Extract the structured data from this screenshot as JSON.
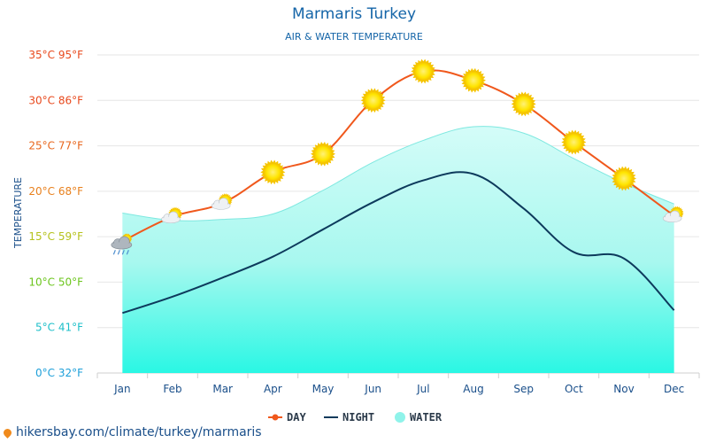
{
  "title": "Marmaris Turkey",
  "subtitle": "AIR & WATER TEMPERATURE",
  "watermark": "hikersbay.com/climate/turkey/marmaris",
  "colors": {
    "day": "#f0581c",
    "night": "#0d3a5c",
    "water_top": "#c8fbf6",
    "water_bottom": "#2af7e4",
    "water_edge": "#7ee8e0",
    "title": "#1565a8",
    "grid": "#e6e6e6"
  },
  "chart_data": {
    "type": "line",
    "ylabel": "TEMPERATURE",
    "ylim": [
      0,
      35
    ],
    "grid": true,
    "legend": "bottom-center",
    "categories": [
      "Jan",
      "Feb",
      "Mar",
      "Apr",
      "May",
      "Jun",
      "Jul",
      "Aug",
      "Sep",
      "Oct",
      "Nov",
      "Dec"
    ],
    "y_ticks": [
      {
        "value": 35,
        "label": "35°C 95°F",
        "color": "#e8491d"
      },
      {
        "value": 30,
        "label": "30°C 86°F",
        "color": "#e8491d"
      },
      {
        "value": 25,
        "label": "25°C 77°F",
        "color": "#e8661d"
      },
      {
        "value": 20,
        "label": "20°C 68°F",
        "color": "#e8801d"
      },
      {
        "value": 15,
        "label": "15°C 59°F",
        "color": "#b5c21d"
      },
      {
        "value": 10,
        "label": "10°C 50°F",
        "color": "#6cc51d"
      },
      {
        "value": 5,
        "label": "5°C 41°F",
        "color": "#1dbfc9"
      },
      {
        "value": 0,
        "label": "0°C 32°F",
        "color": "#1d9fd9"
      }
    ],
    "series": [
      {
        "name": "DAY",
        "key": "day",
        "values": [
          14.5,
          17.2,
          18.7,
          22.1,
          24.1,
          30.0,
          33.2,
          32.2,
          29.6,
          25.4,
          21.4,
          17.3
        ]
      },
      {
        "name": "NIGHT",
        "key": "night",
        "values": [
          6.6,
          8.4,
          10.5,
          12.8,
          15.8,
          18.8,
          21.2,
          21.9,
          18.1,
          13.3,
          12.6,
          6.9
        ]
      },
      {
        "name": "WATER",
        "key": "water",
        "values": [
          17.6,
          16.8,
          16.9,
          17.5,
          20.1,
          23.2,
          25.6,
          27.1,
          26.4,
          23.6,
          20.9,
          18.6
        ]
      }
    ],
    "day_icons": [
      "cloud-rain",
      "sun-cloud",
      "sun-cloud",
      "sun",
      "sun",
      "sun",
      "sun",
      "sun",
      "sun",
      "sun",
      "sun",
      "sun-cloud"
    ]
  }
}
